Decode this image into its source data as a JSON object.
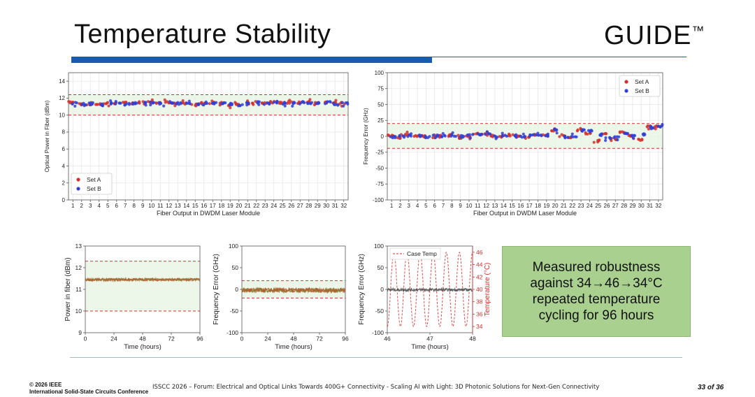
{
  "slide": {
    "title": "Temperature Stability",
    "logo": "GUIDE",
    "logo_tm": "™",
    "callout": [
      "Measured robustness",
      "against 34→46→34°C",
      "repeated temperature",
      "cycling for 96 hours"
    ],
    "footer_left": [
      "© 2026 IEEE",
      "International Solid-State Circuits Conference"
    ],
    "footer_center": "ISSCC 2026 – Forum: Electrical and Optical Links Towards 400G+ Connectivity - Scaling AI with Light: 3D Photonic Solutions for Next-Gen Connectivity",
    "page": "33 of 36"
  },
  "colors": {
    "accent_blue": "#1a5bb0",
    "set_a": "#d0312d",
    "set_b": "#2f3fd6",
    "limit_line": "#d0312d",
    "band_fill": "#e8f5e4",
    "callout_bg": "#a9d08e",
    "trace": "#b5562a"
  },
  "chart_data": [
    {
      "id": "power",
      "type": "scatter",
      "xlabel": "Fiber Output in DWDM Laser Module",
      "ylabel": "Optical Power in Fiber (dBm)",
      "xlim": [
        0.5,
        32.5
      ],
      "ylim": [
        0,
        15
      ],
      "xticks": [
        1,
        2,
        3,
        4,
        5,
        6,
        7,
        8,
        9,
        10,
        11,
        12,
        13,
        14,
        15,
        16,
        17,
        18,
        19,
        20,
        21,
        22,
        23,
        24,
        25,
        26,
        27,
        28,
        29,
        30,
        31,
        32
      ],
      "yticks": [
        0,
        2,
        4,
        6,
        8,
        10,
        12,
        14
      ],
      "limits": [
        10,
        12.4
      ],
      "legend": [
        "Set A",
        "Set B"
      ],
      "legend_position": "lower-left",
      "series": [
        {
          "name": "Set A",
          "values": [
            11.5,
            11.3,
            11.2,
            11.3,
            11.4,
            11.4,
            11.5,
            11.4,
            11.5,
            11.5,
            11.5,
            11.5,
            11.3,
            11.4,
            11.2,
            11.4,
            11.4,
            11.4,
            11.2,
            11.3,
            11.4,
            11.5,
            11.4,
            11.5,
            11.5,
            11.5,
            11.4,
            11.5,
            11.4,
            11.5,
            11.5,
            11.4
          ]
        },
        {
          "name": "Set B",
          "values": [
            11.4,
            11.2,
            11.4,
            11.2,
            11.4,
            11.5,
            11.3,
            11.4,
            11.4,
            11.5,
            11.4,
            11.5,
            11.4,
            11.3,
            11.3,
            11.3,
            11.4,
            11.4,
            11.3,
            11.2,
            11.4,
            11.5,
            11.4,
            11.5,
            11.4,
            11.4,
            11.5,
            11.4,
            11.4,
            11.5,
            11.3,
            11.4
          ]
        }
      ]
    },
    {
      "id": "freq",
      "type": "scatter",
      "xlabel": "Fiber Output in DWDM Laser Module",
      "ylabel": "Frequency Error (GHz)",
      "xlim": [
        0.5,
        32.5
      ],
      "ylim": [
        -100,
        100
      ],
      "xticks": [
        1,
        2,
        3,
        4,
        5,
        6,
        7,
        8,
        9,
        10,
        11,
        12,
        13,
        14,
        15,
        16,
        17,
        18,
        19,
        20,
        21,
        22,
        23,
        24,
        25,
        26,
        27,
        28,
        29,
        30,
        31,
        32
      ],
      "yticks": [
        -100,
        -75,
        -50,
        -25,
        0,
        25,
        50,
        75,
        100
      ],
      "limits": [
        -19,
        20
      ],
      "legend": [
        "Set A",
        "Set B"
      ],
      "legend_position": "upper-right",
      "series": [
        {
          "name": "Set A",
          "values": [
            1,
            -2,
            2,
            1,
            0,
            -1,
            1,
            2,
            -3,
            -1,
            4,
            3,
            1,
            0,
            2,
            1,
            -2,
            3,
            1,
            9,
            0,
            -2,
            10,
            5,
            -8,
            4,
            -4,
            6,
            1,
            -5,
            15,
            16
          ]
        },
        {
          "name": "Set B",
          "values": [
            -1,
            0,
            1,
            0,
            -1,
            1,
            0,
            1,
            0,
            2,
            2,
            3,
            0,
            1,
            1,
            0,
            2,
            2,
            1,
            10,
            -1,
            0,
            9,
            8,
            2,
            -3,
            -1,
            5,
            0,
            3,
            14,
            15
          ]
        }
      ]
    },
    {
      "id": "power_time",
      "type": "line",
      "xlabel": "Time (hours)",
      "ylabel": "Power in fiber (dBm)",
      "xlim": [
        0,
        96
      ],
      "ylim": [
        9,
        13
      ],
      "xticks": [
        0,
        24,
        48,
        72,
        96
      ],
      "yticks": [
        9,
        10,
        11,
        12,
        13
      ],
      "limits": [
        10,
        12.3
      ],
      "series": [
        {
          "name": "Power",
          "mean": 11.45,
          "spread": 0.06
        }
      ]
    },
    {
      "id": "freq_time",
      "type": "line",
      "xlabel": "Time (hours)",
      "ylabel": "Frequency Error (GHz)",
      "xlim": [
        0,
        96
      ],
      "ylim": [
        -100,
        100
      ],
      "xticks": [
        0,
        24,
        48,
        72,
        96
      ],
      "yticks": [
        -100,
        -50,
        0,
        50,
        100
      ],
      "limits": [
        -20,
        20
      ],
      "series": [
        {
          "name": "Frequency error",
          "mean": -2,
          "spread": 5
        }
      ]
    },
    {
      "id": "zoom",
      "type": "line",
      "xlabel": "Time (hours)",
      "ylabel": "Frequency Error (GHz)",
      "ylabel_right": "Temperature (°C)",
      "xlim": [
        46,
        48
      ],
      "ylim": [
        -100,
        100
      ],
      "ylim_right": [
        33,
        47
      ],
      "xticks": [
        46,
        47,
        48
      ],
      "yticks": [
        -100,
        -50,
        0,
        50,
        100
      ],
      "yticks_right": [
        34,
        36,
        38,
        40,
        42,
        44,
        46
      ],
      "legend": [
        "Case Temp"
      ],
      "legend_position": "top-left",
      "temperature_range": [
        34,
        46
      ],
      "cycles": 6.5
    }
  ]
}
